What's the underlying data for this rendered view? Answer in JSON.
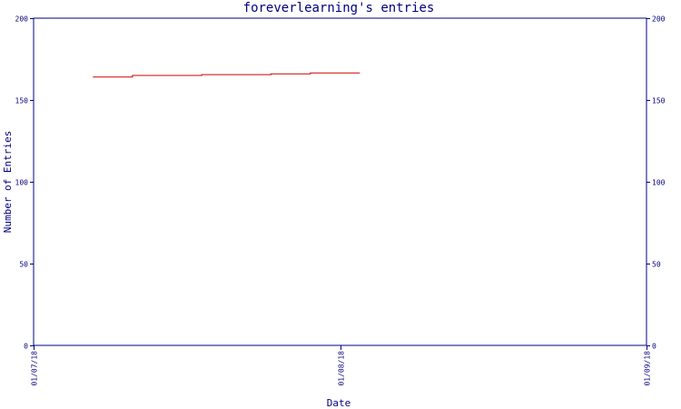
{
  "chart_data": {
    "type": "line",
    "title": "foreverlearning's entries",
    "xlabel": "Date",
    "ylabel": "Number of Entries",
    "ylim": [
      0,
      200
    ],
    "yticks": [
      "0",
      "50",
      "100",
      "150",
      "200"
    ],
    "xlim": [
      "2018-07-01",
      "2018-09-01"
    ],
    "xticks": [
      "01/07/18",
      "01/08/18",
      "01/09/18"
    ],
    "grid": false,
    "legend": "none",
    "series": [
      {
        "color": "#cc0000",
        "points": [
          {
            "x": "2018-07-07",
            "y": 164
          },
          {
            "x": "2018-07-11",
            "y": 164
          },
          {
            "x": "2018-07-11",
            "y": 165
          },
          {
            "x": "2018-07-18",
            "y": 165
          },
          {
            "x": "2018-07-18",
            "y": 165.5
          },
          {
            "x": "2018-07-25",
            "y": 165.5
          },
          {
            "x": "2018-07-25",
            "y": 166
          },
          {
            "x": "2018-07-29",
            "y": 166
          },
          {
            "x": "2018-07-29",
            "y": 166.5
          },
          {
            "x": "2018-08-03",
            "y": 166.5
          }
        ]
      }
    ],
    "colors": {
      "axis": "#000080",
      "text": "#000080"
    }
  }
}
